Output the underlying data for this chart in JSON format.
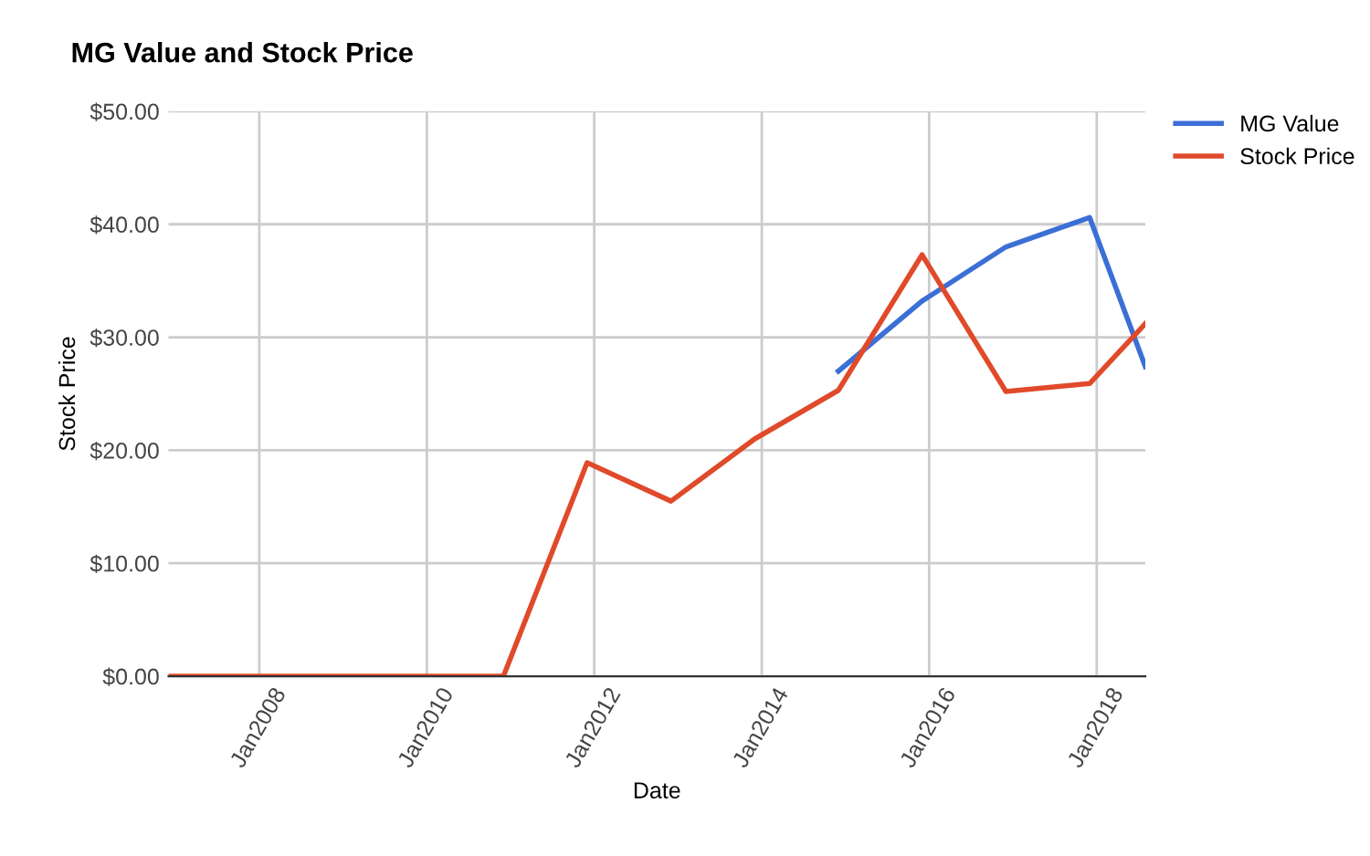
{
  "chart_data": {
    "type": "line",
    "title": "MG Value and Stock Price",
    "xlabel": "Date",
    "ylabel": "Stock Price",
    "series": [
      {
        "name": "MG Value",
        "color": "#3c6fd6",
        "x": [
          "2014-12",
          "2015-12",
          "2016-12",
          "2017-12",
          "2018-08"
        ],
        "values": [
          27.0,
          33.2,
          38.0,
          40.6,
          27.4
        ]
      },
      {
        "name": "Stock Price",
        "color": "#e04a2a",
        "x": [
          "2006-12",
          "2007-12",
          "2008-12",
          "2009-12",
          "2010-12",
          "2011-12",
          "2012-12",
          "2013-12",
          "2014-12",
          "2015-12",
          "2016-12",
          "2017-12",
          "2018-08"
        ],
        "values": [
          0,
          0,
          0,
          0,
          0,
          18.9,
          15.5,
          21.0,
          25.3,
          37.3,
          25.2,
          25.9,
          31.2
        ]
      }
    ],
    "xlim": [
      "2006-12",
      "2018-08"
    ],
    "xticks": [
      {
        "value": "2008-01",
        "label": "Jan2008"
      },
      {
        "value": "2010-01",
        "label": "Jan2010"
      },
      {
        "value": "2012-01",
        "label": "Jan2012"
      },
      {
        "value": "2014-01",
        "label": "Jan2014"
      },
      {
        "value": "2016-01",
        "label": "Jan2016"
      },
      {
        "value": "2018-01",
        "label": "Jan2018"
      }
    ],
    "ylim": [
      0,
      50
    ],
    "yticks": [
      {
        "value": 0,
        "label": "$0.00"
      },
      {
        "value": 10,
        "label": "$10.00"
      },
      {
        "value": 20,
        "label": "$20.00"
      },
      {
        "value": 30,
        "label": "$30.00"
      },
      {
        "value": 40,
        "label": "$40.00"
      },
      {
        "value": 50,
        "label": "$50.00"
      }
    ],
    "grid": true,
    "legend": "top right",
    "line_style": "solid",
    "marker": "none"
  }
}
